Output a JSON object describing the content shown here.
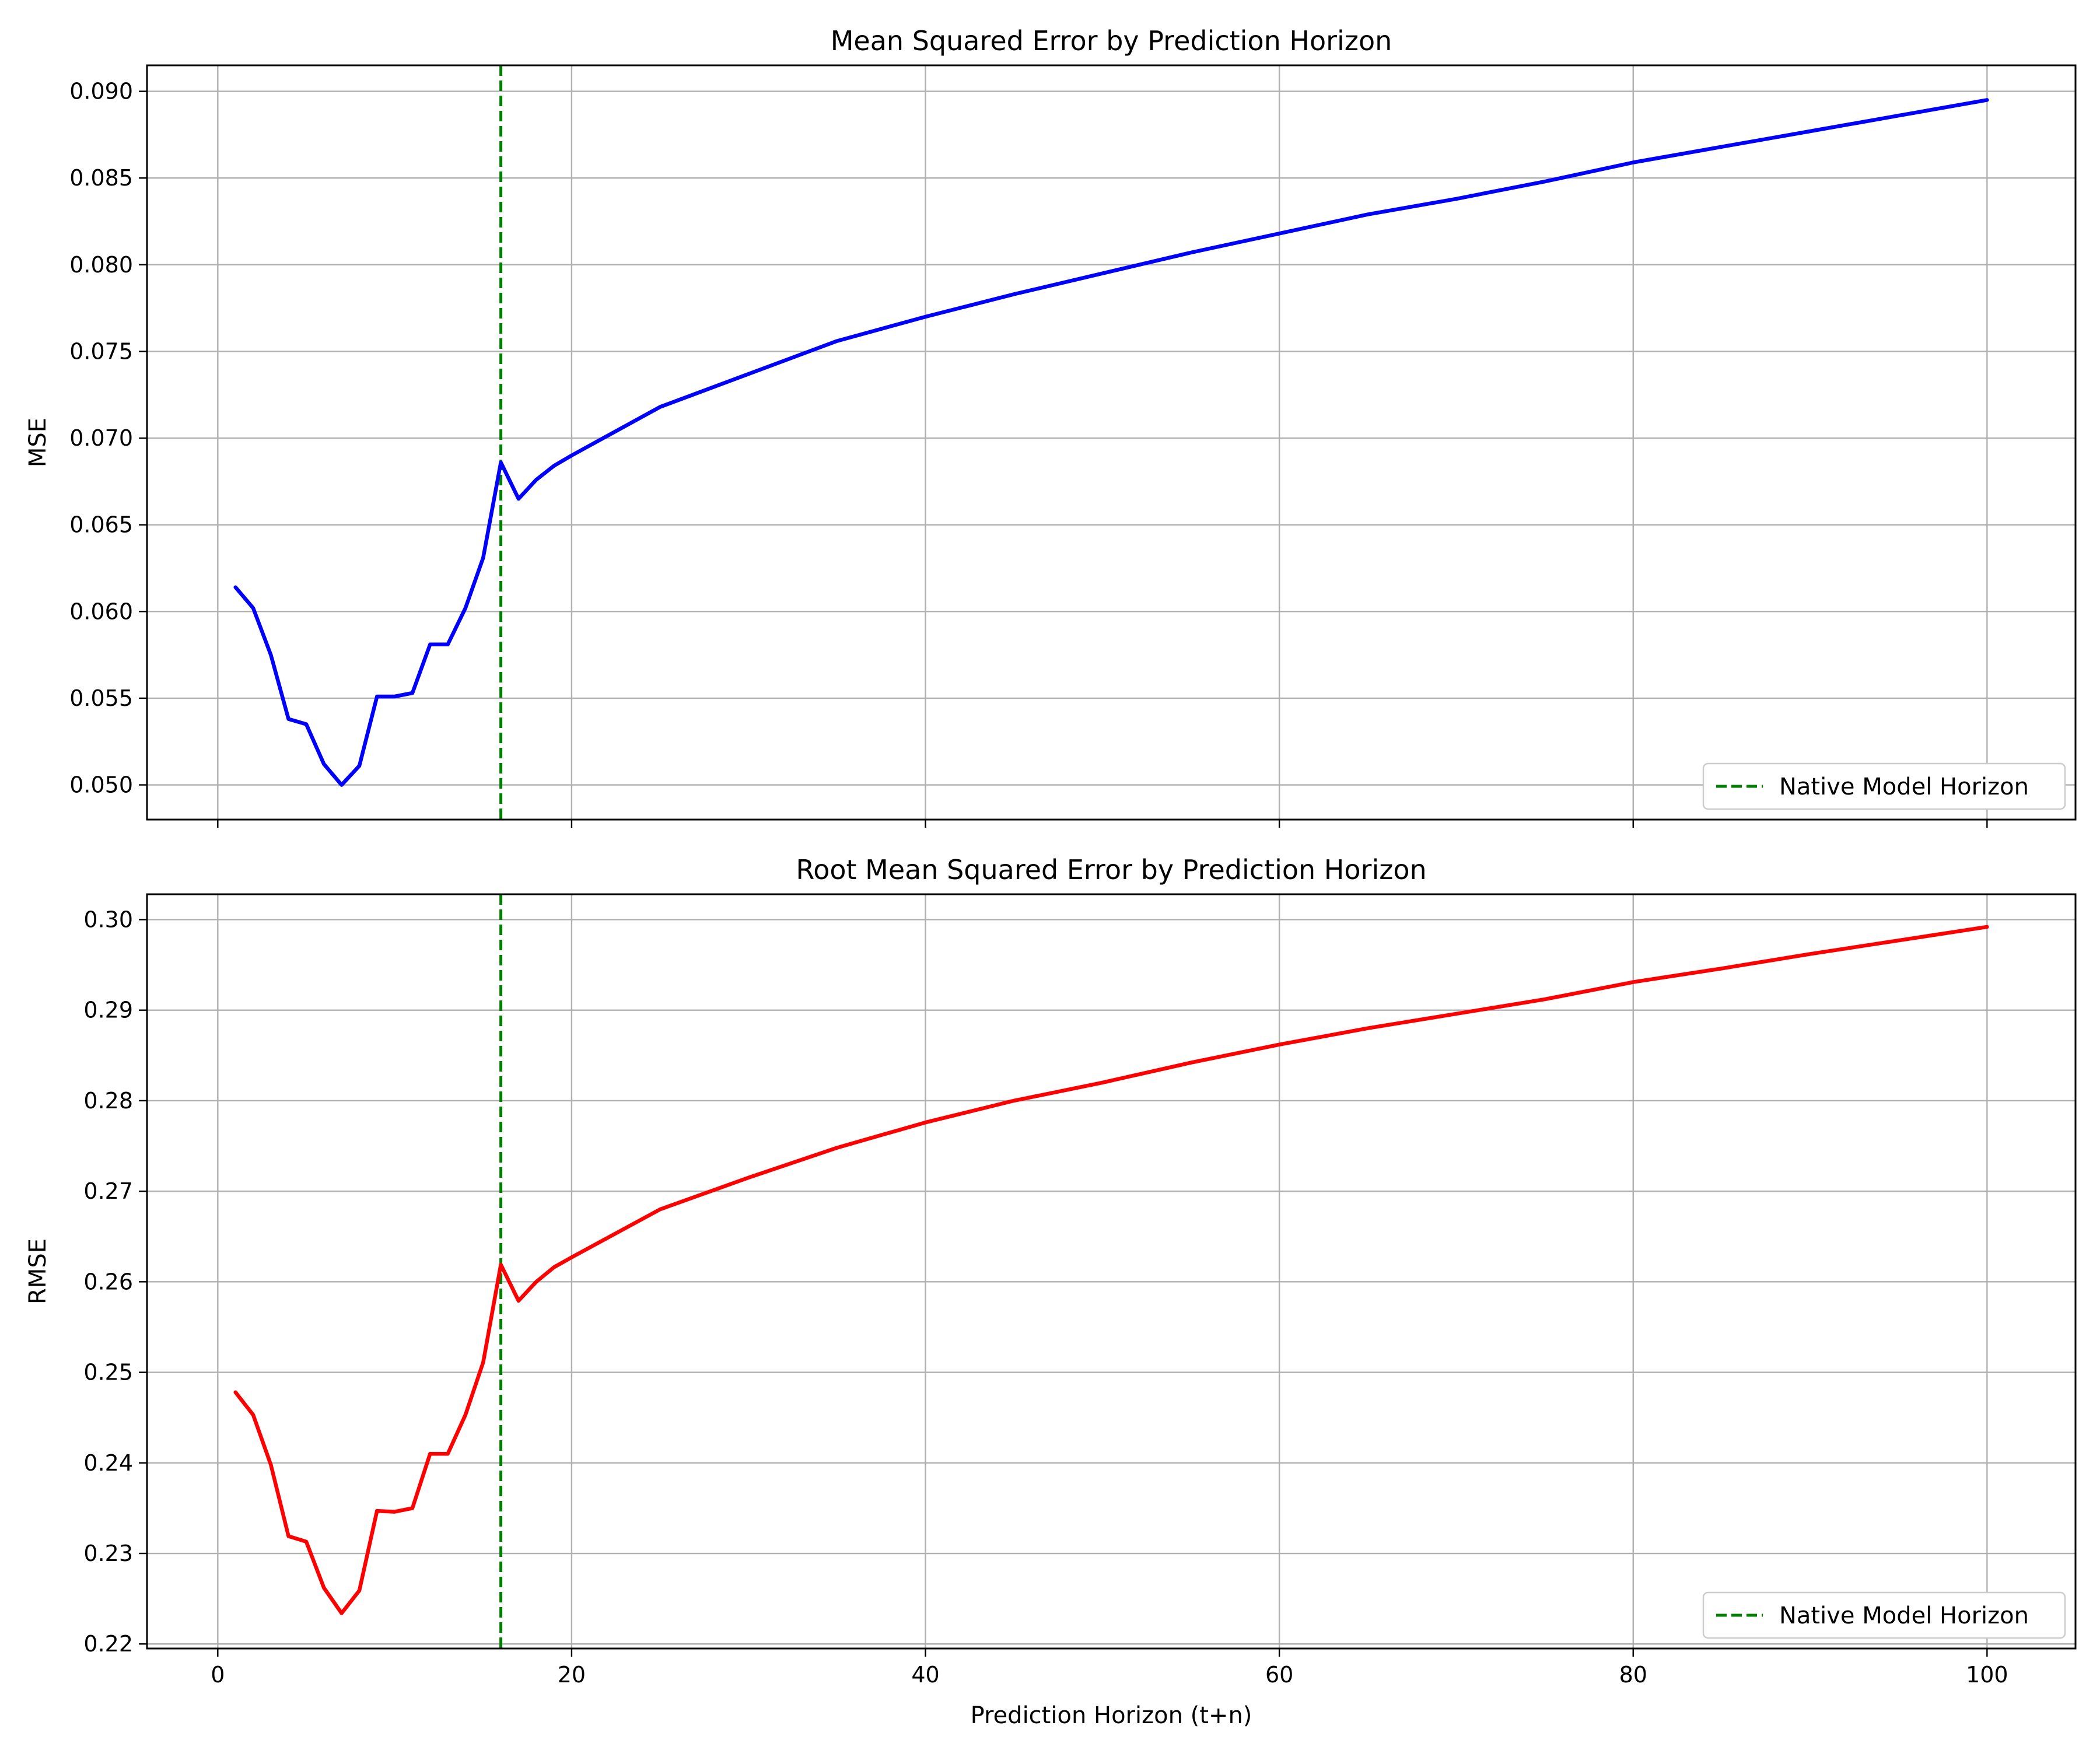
{
  "chart_data": [
    {
      "type": "line",
      "title": "Mean Squared Error by Prediction Horizon",
      "xlabel": "",
      "ylabel": "MSE",
      "xlim": [
        -4,
        105
      ],
      "ylim": [
        0.048,
        0.0915
      ],
      "xticks": [
        0,
        20,
        40,
        60,
        80,
        100
      ],
      "xtick_labels_visible": false,
      "yticks": [
        0.05,
        0.055,
        0.06,
        0.065,
        0.07,
        0.075,
        0.08,
        0.085,
        0.09
      ],
      "ytick_labels": [
        "0.050",
        "0.055",
        "0.060",
        "0.065",
        "0.070",
        "0.075",
        "0.080",
        "0.085",
        "0.090"
      ],
      "grid": true,
      "series": [
        {
          "color": "#0000ff",
          "x": [
            1,
            2,
            3,
            4,
            5,
            6,
            7,
            8,
            9,
            10,
            11,
            12,
            13,
            14,
            15,
            16,
            17,
            18,
            19,
            20,
            25,
            30,
            35,
            40,
            45,
            50,
            55,
            60,
            65,
            70,
            75,
            80,
            85,
            90,
            95,
            100
          ],
          "y": [
            0.0614,
            0.0602,
            0.0575,
            0.0538,
            0.0535,
            0.0512,
            0.05,
            0.0511,
            0.0551,
            0.0551,
            0.0553,
            0.0581,
            0.0581,
            0.0602,
            0.0631,
            0.0686,
            0.0665,
            0.0676,
            0.0684,
            0.069,
            0.0718,
            0.0737,
            0.0756,
            0.077,
            0.0783,
            0.0795,
            0.0807,
            0.0818,
            0.0829,
            0.0838,
            0.0848,
            0.0859,
            0.0868,
            0.0877,
            0.0886,
            0.0895
          ]
        }
      ],
      "vline": {
        "x": 16,
        "color": "#008000",
        "label": "Native Model Horizon"
      },
      "legend_position": "lower right"
    },
    {
      "type": "line",
      "title": "Root Mean Squared Error by Prediction Horizon",
      "xlabel": "Prediction Horizon (t+n)",
      "ylabel": "RMSE",
      "xlim": [
        -4,
        105
      ],
      "ylim": [
        0.2195,
        0.3028
      ],
      "xticks": [
        0,
        20,
        40,
        60,
        80,
        100
      ],
      "xtick_labels": [
        "0",
        "20",
        "40",
        "60",
        "80",
        "100"
      ],
      "xtick_labels_visible": true,
      "yticks": [
        0.22,
        0.23,
        0.24,
        0.25,
        0.26,
        0.27,
        0.28,
        0.29,
        0.3
      ],
      "ytick_labels": [
        "0.22",
        "0.23",
        "0.24",
        "0.25",
        "0.26",
        "0.27",
        "0.28",
        "0.29",
        "0.30"
      ],
      "grid": true,
      "series": [
        {
          "color": "#ff0000",
          "x": [
            1,
            2,
            3,
            4,
            5,
            6,
            7,
            8,
            9,
            10,
            11,
            12,
            13,
            14,
            15,
            16,
            17,
            18,
            19,
            20,
            25,
            30,
            35,
            40,
            45,
            50,
            55,
            60,
            65,
            70,
            75,
            80,
            85,
            90,
            95,
            100
          ],
          "y": [
            0.2478,
            0.2453,
            0.2398,
            0.2319,
            0.2313,
            0.2262,
            0.2234,
            0.2259,
            0.2347,
            0.2346,
            0.235,
            0.241,
            0.241,
            0.2453,
            0.2511,
            0.2619,
            0.2579,
            0.26,
            0.2616,
            0.2627,
            0.268,
            0.2715,
            0.2748,
            0.2776,
            0.28,
            0.282,
            0.2842,
            0.2862,
            0.288,
            0.2896,
            0.2912,
            0.2931,
            0.2946,
            0.2962,
            0.2977,
            0.2992
          ]
        }
      ],
      "vline": {
        "x": 16,
        "color": "#008000",
        "label": "Native Model Horizon"
      },
      "legend_position": "lower right"
    }
  ]
}
